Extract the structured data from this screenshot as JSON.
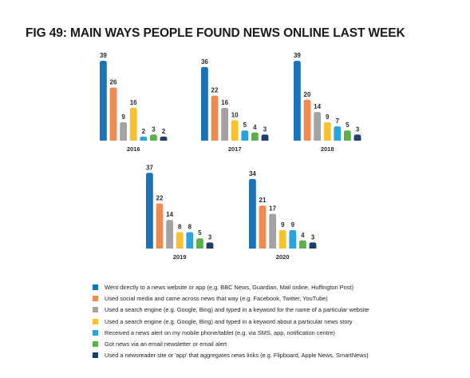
{
  "title": "FIG 49: MAIN WAYS PEOPLE FOUND NEWS ONLINE LAST WEEK",
  "colors": [
    "#1a72b8",
    "#f08a50",
    "#a3a3a3",
    "#f8c12e",
    "#2aa4dc",
    "#5bb047",
    "#1e3f6c"
  ],
  "chart_data": {
    "type": "bar",
    "series_names": [
      "Went directly to a news website or app (e.g. BBC News, Guardian, Mail online, Huffington Post)",
      "Used social media and came across news that way (e.g. Facebook, Twitter, YouTube)",
      "Used a search engine (e.g. Google, Bing) and typed in a keyword for the name of a particular website",
      "Used a search engine (e.g. Google, Bing) and typed in a keyword about a particular news story",
      "Received a news alert on my mobile phone/tablet (e.g. via SMS, app, notification centre)",
      "Got news via an email newsletter or email alert",
      "Used a newsreader site or 'app' that aggregates news links  (e.g. Flipboard, Apple News, SmartNews)"
    ],
    "panels": [
      {
        "year": "2016",
        "values": [
          39,
          26,
          9,
          16,
          2,
          3,
          2
        ]
      },
      {
        "year": "2017",
        "values": [
          36,
          22,
          16,
          10,
          5,
          4,
          3
        ]
      },
      {
        "year": "2018",
        "values": [
          39,
          20,
          14,
          9,
          7,
          5,
          3
        ]
      },
      {
        "year": "2019",
        "values": [
          37,
          22,
          14,
          8,
          8,
          5,
          3
        ]
      },
      {
        "year": "2020",
        "values": [
          34,
          21,
          17,
          9,
          9,
          4,
          3
        ]
      }
    ]
  }
}
